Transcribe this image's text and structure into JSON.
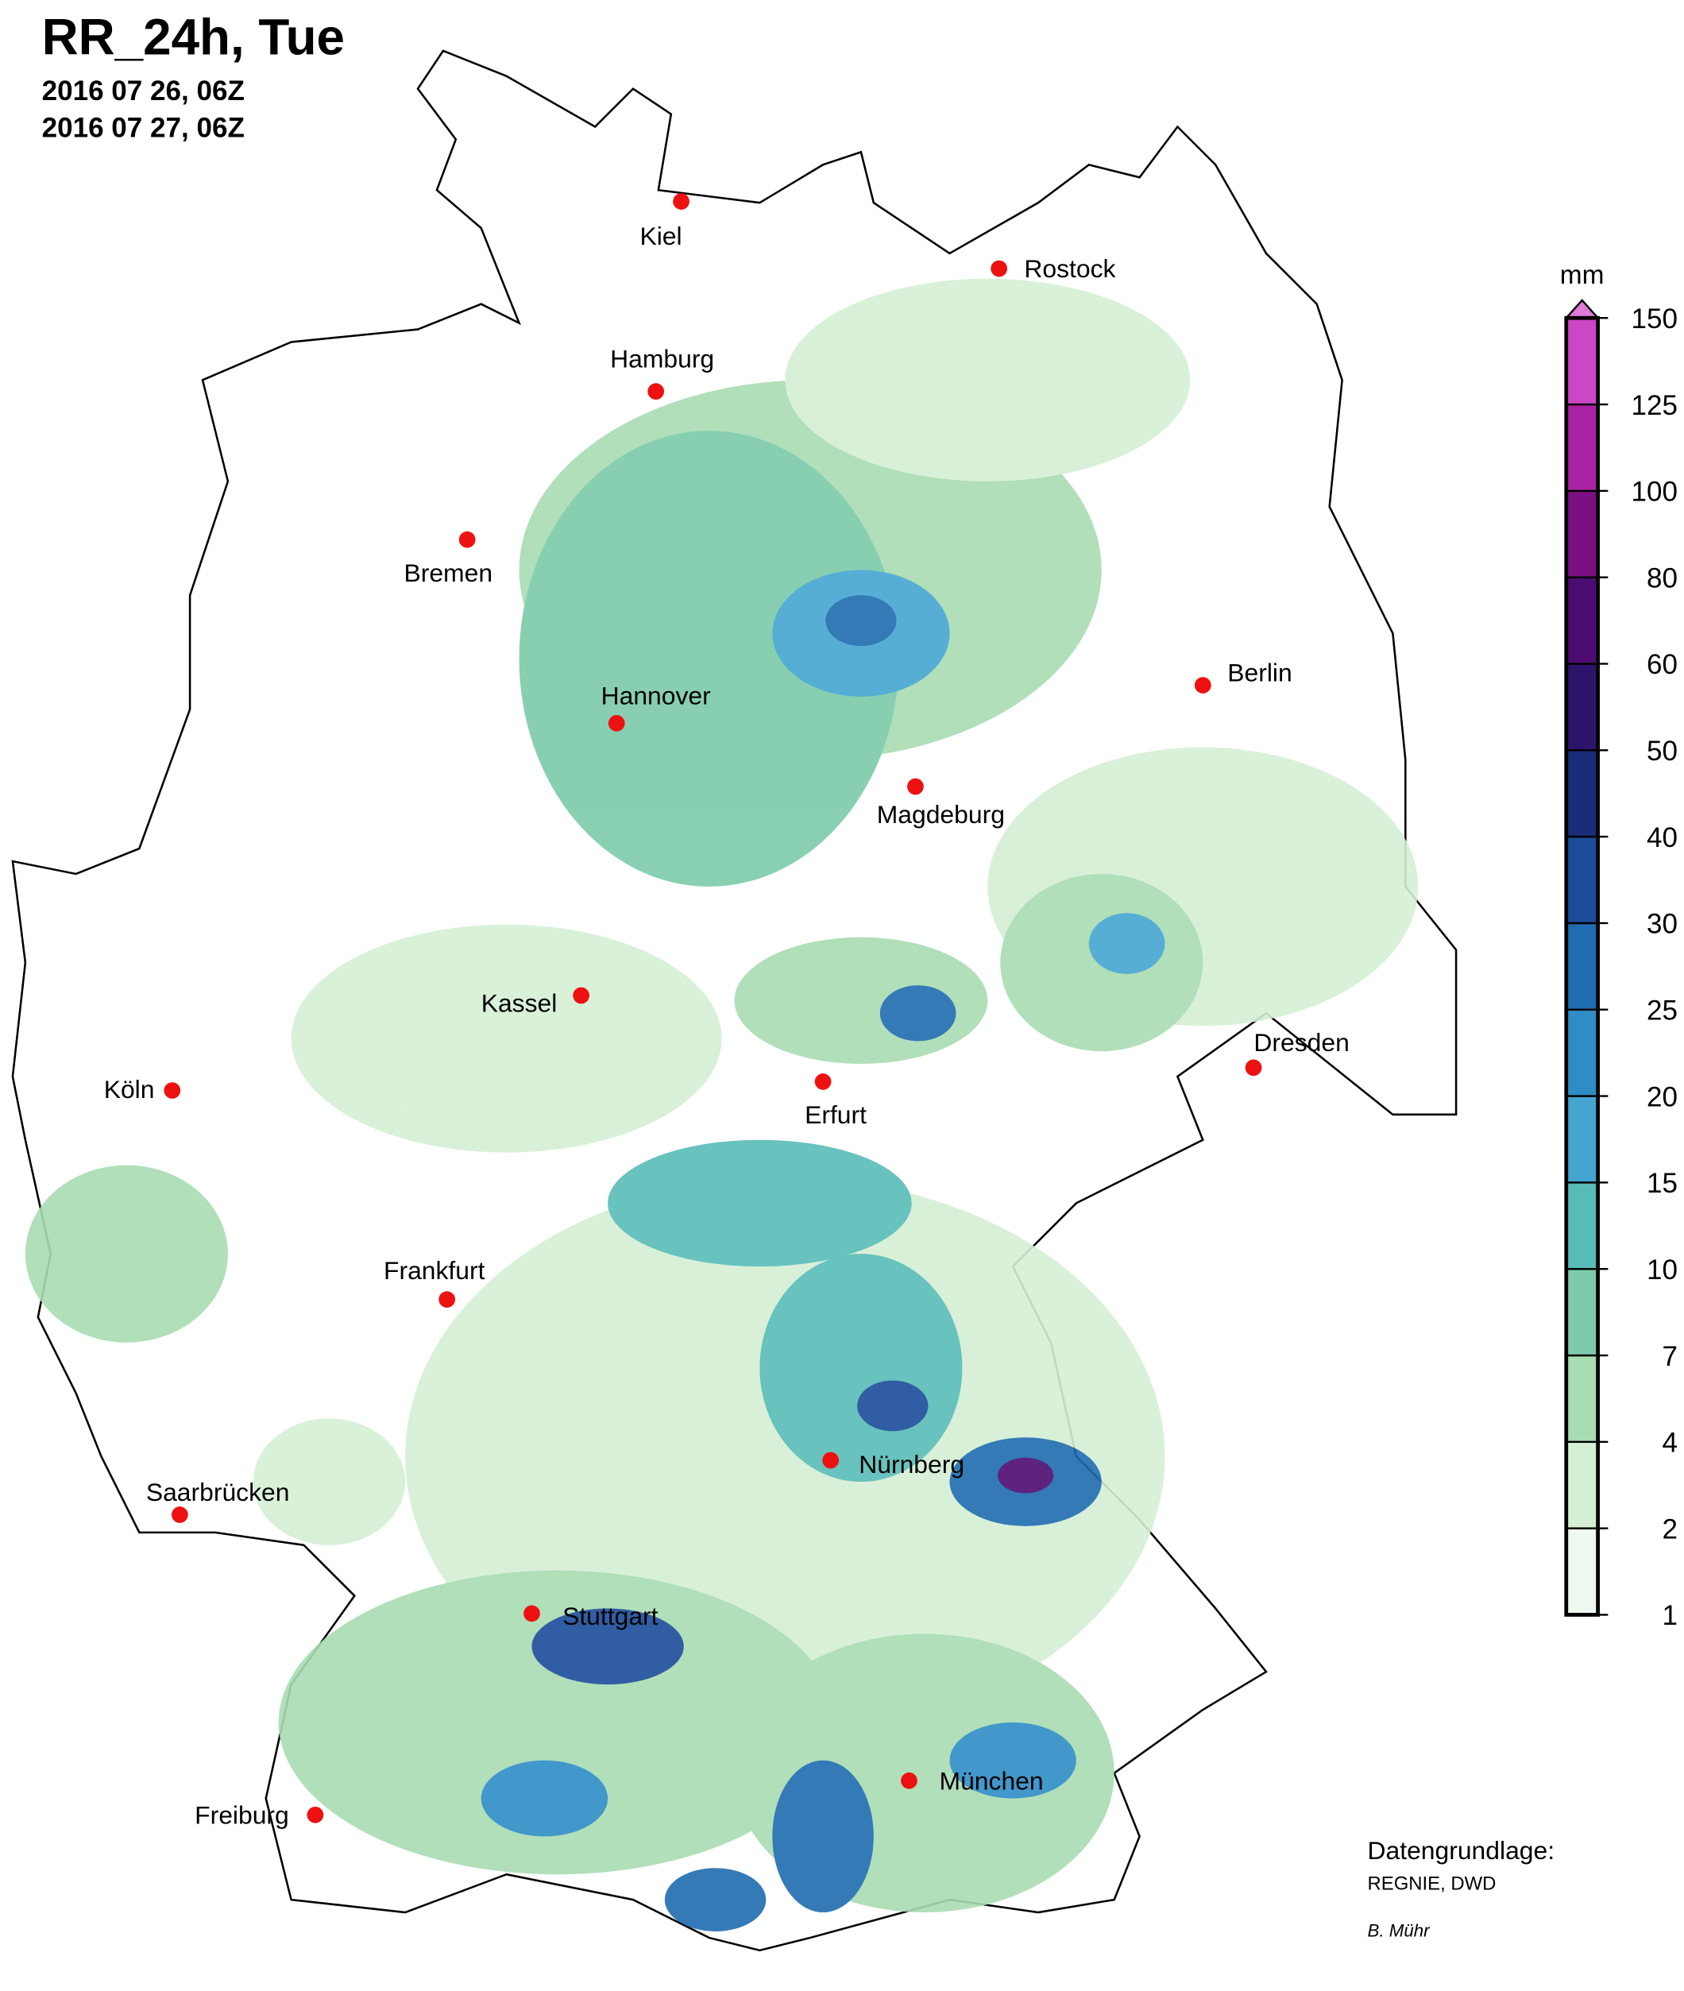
{
  "header": {
    "title": "RR_24h, Tue",
    "dates": [
      "2016 07 26, 06Z",
      "2016 07 27, 06Z"
    ]
  },
  "cities": [
    {
      "label": "Kiel"
    },
    {
      "label": "Rostock"
    },
    {
      "label": "Hamburg"
    },
    {
      "label": "Bremen"
    },
    {
      "label": "Hannover"
    },
    {
      "label": "Berlin"
    },
    {
      "label": "Magdeburg"
    },
    {
      "label": "Kassel"
    },
    {
      "label": "Dresden"
    },
    {
      "label": "Köln"
    },
    {
      "label": "Erfurt"
    },
    {
      "label": "Frankfurt"
    },
    {
      "label": "Nürnberg"
    },
    {
      "label": "Saarbrücken"
    },
    {
      "label": "Stuttgart"
    },
    {
      "label": "München"
    },
    {
      "label": "Freiburg"
    }
  ],
  "legend": {
    "unit": "mm",
    "ticks": [
      1,
      2,
      4,
      7,
      10,
      15,
      20,
      25,
      30,
      40,
      50,
      60,
      80,
      100,
      125,
      150
    ],
    "colors": [
      "#eef8ee",
      "#d4efd4",
      "#a8dcb2",
      "#7ccaaa",
      "#58bcb6",
      "#44a6d0",
      "#2e8cc6",
      "#1f6cb0",
      "#1a4c9a",
      "#182c78",
      "#2c146a",
      "#4c0c72",
      "#7c1082",
      "#aa22a4",
      "#cc46c6"
    ],
    "extend_color": "#e07ad8"
  },
  "credits": {
    "source_label": "Datengrundlage:",
    "source": "REGNIE, DWD",
    "author": "B. Mühr"
  }
}
